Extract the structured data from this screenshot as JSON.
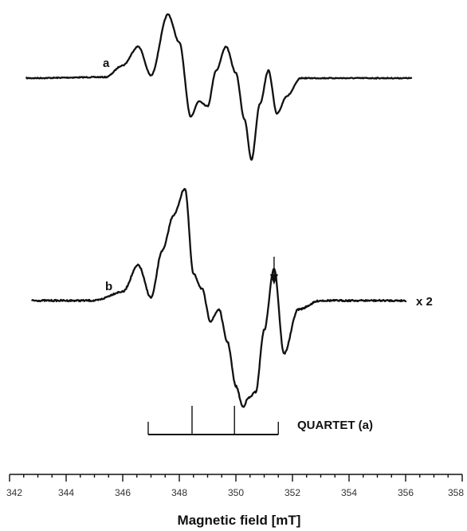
{
  "chart_data": {
    "type": "line",
    "title": "",
    "xlabel": "Magnetic field [mT]",
    "ylabel": "",
    "xlim": [
      342,
      358
    ],
    "xticks": [
      "342",
      "344",
      "346",
      "348",
      "350",
      "352",
      "354",
      "356",
      "358"
    ],
    "grid": false,
    "series": [
      {
        "name": "a",
        "x": [
          342.6,
          345.4,
          346.0,
          346.55,
          347.0,
          347.6,
          348.0,
          348.4,
          348.7,
          349.0,
          349.3,
          349.65,
          350.0,
          350.3,
          350.55,
          350.85,
          351.15,
          351.45,
          351.8,
          352.3,
          353.0,
          356.2
        ],
        "y": [
          0.0,
          0.02,
          0.25,
          0.62,
          0.05,
          1.25,
          0.7,
          -0.75,
          -0.45,
          -0.55,
          0.15,
          0.62,
          0.1,
          -0.8,
          -1.6,
          -0.5,
          0.15,
          -0.7,
          -0.35,
          0.0,
          0.0,
          0.0
        ]
      },
      {
        "name": "b",
        "x": [
          342.8,
          345.0,
          346.0,
          346.55,
          347.0,
          347.4,
          347.8,
          348.2,
          348.5,
          348.8,
          349.1,
          349.4,
          349.7,
          350.0,
          350.25,
          350.45,
          350.7,
          351.0,
          351.35,
          351.7,
          352.2,
          353.0,
          356.0
        ],
        "y": [
          0.0,
          0.0,
          0.15,
          0.6,
          0.05,
          0.85,
          1.45,
          1.9,
          0.45,
          0.2,
          -0.35,
          -0.15,
          -0.7,
          -1.45,
          -1.8,
          -1.65,
          -1.55,
          -0.5,
          0.55,
          -0.9,
          -0.15,
          0.0,
          0.0
        ]
      }
    ],
    "annotations": {
      "label_a": "a",
      "label_b": "b",
      "scale_b": "x 2",
      "arrow_field_mT": 351.35,
      "quartet_label": "QUARTET (a)",
      "quartet_positions_mT": [
        346.9,
        348.45,
        349.95,
        351.5
      ]
    }
  }
}
